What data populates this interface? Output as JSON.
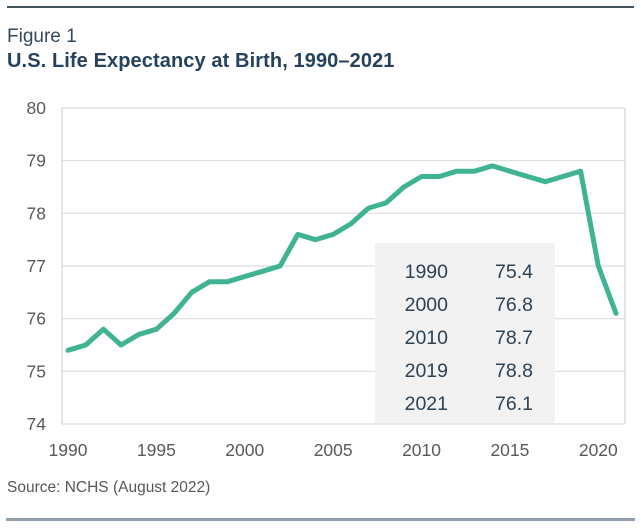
{
  "figure_label": "Figure 1",
  "title": "U.S. Life Expectancy at Birth, 1990–2021",
  "source": "Source: NCHS (August 2022)",
  "colors": {
    "line": "#40b393",
    "title_text": "#26425c",
    "figure_label_text": "#35495c",
    "axis_text": "#595959",
    "grid": "#dcdcdc",
    "inset_background": "#f2f2f2",
    "inset_text": "#2b4257",
    "top_rule": "#44545f",
    "bottom_rule": "#92a0ae"
  },
  "chart_data": {
    "type": "line",
    "title": "U.S. Life Expectancy at Birth, 1990–2021",
    "xlabel": "",
    "ylabel": "",
    "x": [
      1990,
      1991,
      1992,
      1993,
      1994,
      1995,
      1996,
      1997,
      1998,
      1999,
      2000,
      2001,
      2002,
      2003,
      2004,
      2005,
      2006,
      2007,
      2008,
      2009,
      2010,
      2011,
      2012,
      2013,
      2014,
      2015,
      2016,
      2017,
      2018,
      2019,
      2020,
      2021
    ],
    "values": [
      75.4,
      75.5,
      75.8,
      75.5,
      75.7,
      75.8,
      76.1,
      76.5,
      76.7,
      76.7,
      76.8,
      76.9,
      77.0,
      77.6,
      77.5,
      77.6,
      77.8,
      78.1,
      78.2,
      78.5,
      78.7,
      78.7,
      78.8,
      78.8,
      78.9,
      78.8,
      78.7,
      78.6,
      78.7,
      78.8,
      77.0,
      76.1
    ],
    "ylim": [
      74,
      80
    ],
    "yticks": [
      74,
      75,
      76,
      77,
      78,
      79,
      80
    ],
    "xticks": [
      1990,
      1995,
      2000,
      2005,
      2010,
      2015,
      2020
    ],
    "grid": "horizontal",
    "legend": "none",
    "line_color": "#40b393",
    "callouts": [
      {
        "year": "1990",
        "value": "75.4"
      },
      {
        "year": "2000",
        "value": "76.8"
      },
      {
        "year": "2010",
        "value": "78.7"
      },
      {
        "year": "2019",
        "value": "78.8"
      },
      {
        "year": "2021",
        "value": "76.1"
      }
    ]
  }
}
